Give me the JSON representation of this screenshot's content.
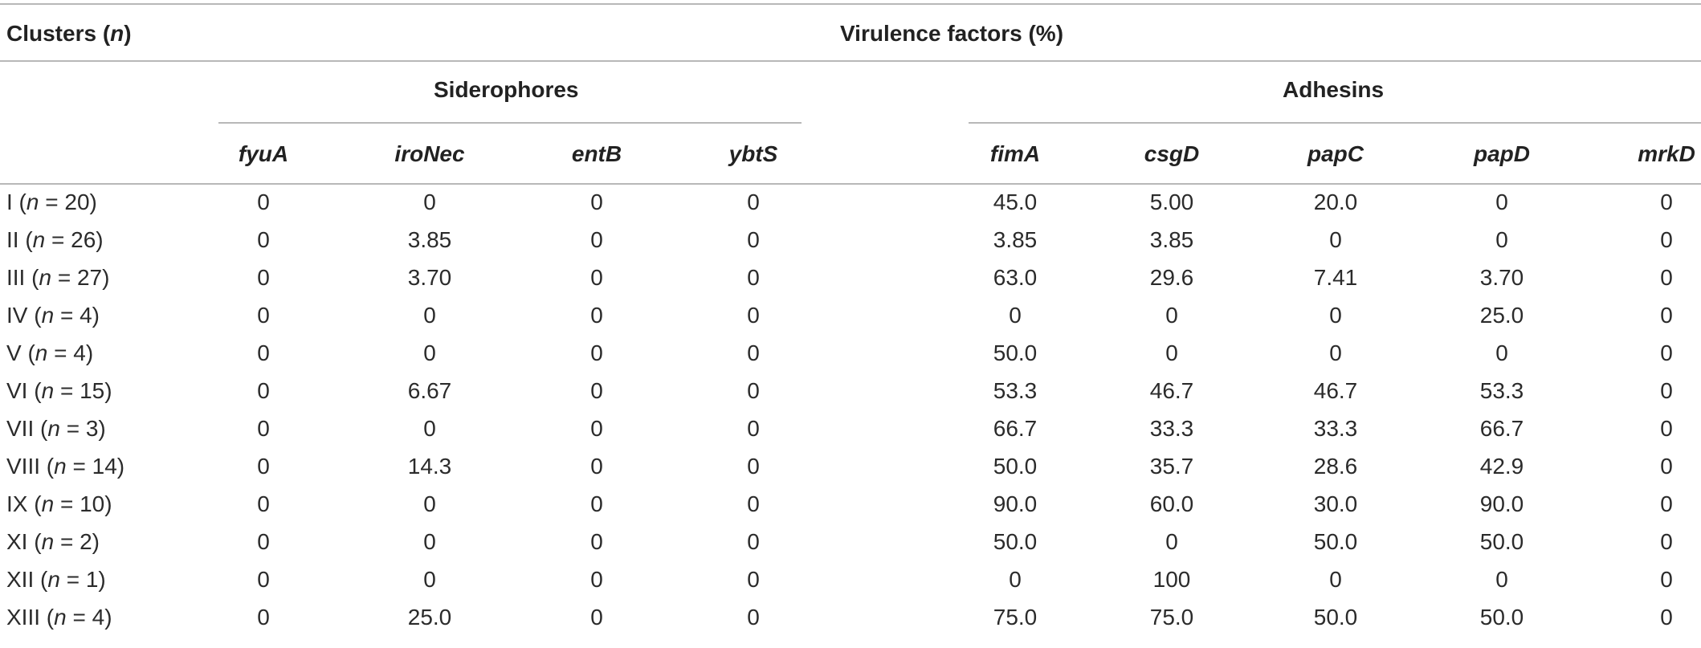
{
  "table": {
    "stub_header_prefix": "Clusters (",
    "stub_header_var": "n",
    "stub_header_suffix": ")",
    "spanner": "Virulence factors (%)",
    "groups": [
      {
        "label": "Siderophores"
      },
      {
        "label": "Adhesins"
      }
    ],
    "columns": [
      "fyuA",
      "iroNec",
      "entB",
      "ybtS",
      "fimA",
      "csgD",
      "papC",
      "papD",
      "mrkD"
    ],
    "rows": [
      {
        "roman": "I",
        "n_var": "n",
        "n_eq": "= 20)",
        "values": [
          "0",
          "0",
          "0",
          "0",
          "45.0",
          "5.00",
          "20.0",
          "0",
          "0"
        ]
      },
      {
        "roman": "II",
        "n_var": "n",
        "n_eq": "= 26)",
        "values": [
          "0",
          "3.85",
          "0",
          "0",
          "3.85",
          "3.85",
          "0",
          "0",
          "0"
        ]
      },
      {
        "roman": "III",
        "n_var": "n",
        "n_eq": "= 27)",
        "values": [
          "0",
          "3.70",
          "0",
          "0",
          "63.0",
          "29.6",
          "7.41",
          "3.70",
          "0"
        ]
      },
      {
        "roman": "IV",
        "n_var": "n",
        "n_eq": "= 4)",
        "values": [
          "0",
          "0",
          "0",
          "0",
          "0",
          "0",
          "0",
          "25.0",
          "0"
        ]
      },
      {
        "roman": "V",
        "n_var": "n",
        "n_eq": "= 4)",
        "values": [
          "0",
          "0",
          "0",
          "0",
          "50.0",
          "0",
          "0",
          "0",
          "0"
        ]
      },
      {
        "roman": "VI",
        "n_var": "n",
        "n_eq": "= 15)",
        "values": [
          "0",
          "6.67",
          "0",
          "0",
          "53.3",
          "46.7",
          "46.7",
          "53.3",
          "0"
        ]
      },
      {
        "roman": "VII",
        "n_var": "n",
        "n_eq": "= 3)",
        "values": [
          "0",
          "0",
          "0",
          "0",
          "66.7",
          "33.3",
          "33.3",
          "66.7",
          "0"
        ]
      },
      {
        "roman": "VIII",
        "n_var": "n",
        "n_eq": "= 14)",
        "values": [
          "0",
          "14.3",
          "0",
          "0",
          "50.0",
          "35.7",
          "28.6",
          "42.9",
          "0"
        ]
      },
      {
        "roman": "IX",
        "n_var": "n",
        "n_eq": "= 10)",
        "values": [
          "0",
          "0",
          "0",
          "0",
          "90.0",
          "60.0",
          "30.0",
          "90.0",
          "0"
        ]
      },
      {
        "roman": "XI",
        "n_var": "n",
        "n_eq": "= 2)",
        "values": [
          "0",
          "0",
          "0",
          "0",
          "50.0",
          "0",
          "50.0",
          "50.0",
          "0"
        ]
      },
      {
        "roman": "XII",
        "n_var": "n",
        "n_eq": "= 1)",
        "values": [
          "0",
          "0",
          "0",
          "0",
          "0",
          "100",
          "0",
          "0",
          "0"
        ]
      },
      {
        "roman": "XIII",
        "n_var": "n",
        "n_eq": "= 4)",
        "values": [
          "0",
          "25.0",
          "0",
          "0",
          "75.0",
          "75.0",
          "50.0",
          "50.0",
          "0"
        ]
      }
    ]
  }
}
